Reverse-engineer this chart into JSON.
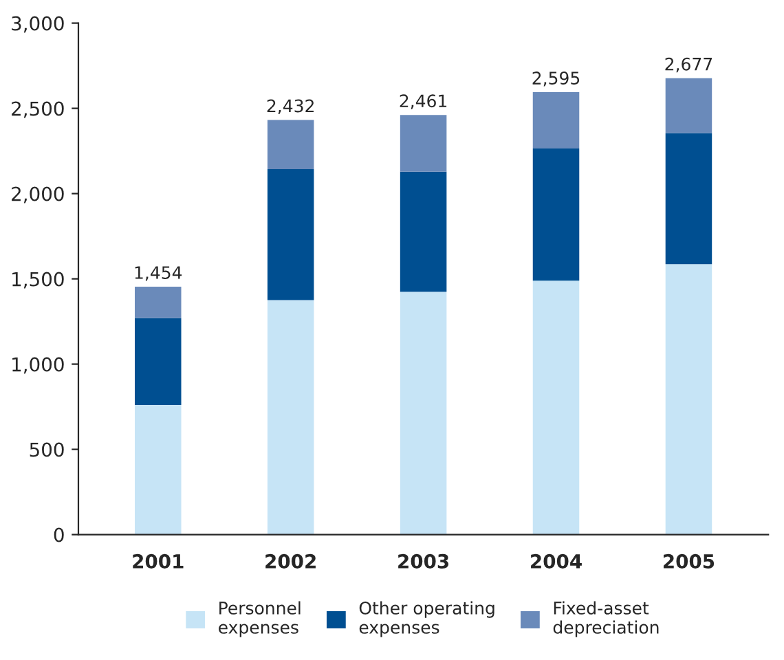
{
  "chart_data": {
    "type": "bar",
    "stacked": true,
    "categories": [
      "2001",
      "2002",
      "2003",
      "2004",
      "2005"
    ],
    "series": [
      {
        "name": "Personnel expenses",
        "color": "#c6e4f6",
        "values": [
          760,
          1375,
          1424,
          1489,
          1586
        ]
      },
      {
        "name": "Other operating expenses",
        "color": "#004f91",
        "values": [
          510,
          769,
          704,
          776,
          768
        ]
      },
      {
        "name": "Fixed-asset depreciation",
        "color": "#6a8aba",
        "values": [
          184,
          288,
          333,
          330,
          323
        ]
      }
    ],
    "totals": [
      "1,454",
      "2,432",
      "2,461",
      "2,595",
      "2,677"
    ],
    "ylim": [
      0,
      3000
    ],
    "yticks": [
      0,
      500,
      {
        "value": 1000,
        "label": "1,000"
      },
      {
        "value": 1500,
        "label": "1,500"
      },
      {
        "value": 2000,
        "label": "2,000"
      },
      {
        "value": 2500,
        "label": "2,500"
      },
      {
        "value": 3000,
        "label": "3,000"
      }
    ],
    "grid": false,
    "legend": "bottom"
  }
}
